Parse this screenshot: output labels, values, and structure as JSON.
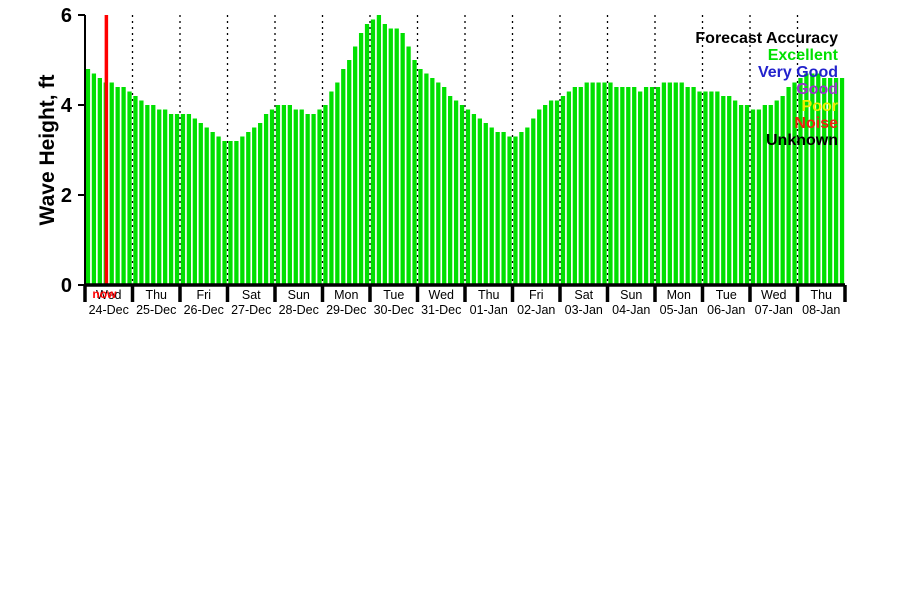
{
  "chart_data": {
    "type": "bar",
    "title": "",
    "ylabel": "Wave Height, ft",
    "ylim": [
      0,
      6
    ],
    "yticks": [
      0,
      2,
      4,
      6
    ],
    "grid": "dotted vertical lines at day boundaries",
    "legend_position": "top-right",
    "bar_color": "#00e000",
    "now_line": {
      "label": "now",
      "color": "#ff0000",
      "day_index": 0,
      "fraction": 0.45
    },
    "days": [
      {
        "day": "Wed",
        "date": "24-Dec"
      },
      {
        "day": "Thu",
        "date": "25-Dec"
      },
      {
        "day": "Fri",
        "date": "26-Dec"
      },
      {
        "day": "Sat",
        "date": "27-Dec"
      },
      {
        "day": "Sun",
        "date": "28-Dec"
      },
      {
        "day": "Mon",
        "date": "29-Dec"
      },
      {
        "day": "Tue",
        "date": "30-Dec"
      },
      {
        "day": "Wed",
        "date": "31-Dec"
      },
      {
        "day": "Thu",
        "date": "01-Jan"
      },
      {
        "day": "Fri",
        "date": "02-Jan"
      },
      {
        "day": "Sat",
        "date": "03-Jan"
      },
      {
        "day": "Sun",
        "date": "04-Jan"
      },
      {
        "day": "Mon",
        "date": "05-Jan"
      },
      {
        "day": "Tue",
        "date": "06-Jan"
      },
      {
        "day": "Wed",
        "date": "07-Jan"
      },
      {
        "day": "Thu",
        "date": "08-Jan"
      }
    ],
    "values_per_day": 8,
    "values": [
      4.8,
      4.7,
      4.6,
      4.5,
      4.5,
      4.4,
      4.4,
      4.3,
      4.2,
      4.1,
      4.0,
      4.0,
      3.9,
      3.9,
      3.8,
      3.8,
      3.8,
      3.8,
      3.7,
      3.6,
      3.5,
      3.4,
      3.3,
      3.2,
      3.2,
      3.2,
      3.3,
      3.4,
      3.5,
      3.6,
      3.8,
      3.9,
      4.0,
      4.0,
      4.0,
      3.9,
      3.9,
      3.8,
      3.8,
      3.9,
      4.0,
      4.3,
      4.5,
      4.8,
      5.0,
      5.3,
      5.6,
      5.8,
      5.9,
      6.0,
      5.8,
      5.7,
      5.7,
      5.6,
      5.3,
      5.0,
      4.8,
      4.7,
      4.6,
      4.5,
      4.4,
      4.2,
      4.1,
      4.0,
      3.9,
      3.8,
      3.7,
      3.6,
      3.5,
      3.4,
      3.4,
      3.3,
      3.3,
      3.4,
      3.5,
      3.7,
      3.9,
      4.0,
      4.1,
      4.1,
      4.2,
      4.3,
      4.4,
      4.4,
      4.5,
      4.5,
      4.5,
      4.5,
      4.5,
      4.4,
      4.4,
      4.4,
      4.4,
      4.3,
      4.4,
      4.4,
      4.4,
      4.5,
      4.5,
      4.5,
      4.5,
      4.4,
      4.4,
      4.3,
      4.3,
      4.3,
      4.3,
      4.2,
      4.2,
      4.1,
      4.0,
      4.0,
      3.9,
      3.9,
      4.0,
      4.0,
      4.1,
      4.2,
      4.4,
      4.5,
      4.6,
      4.7,
      4.7,
      4.7,
      4.6,
      4.6,
      4.6,
      4.6
    ],
    "legend": {
      "title": "Forecast Accuracy",
      "items": [
        {
          "label": "Excellent",
          "color": "#00e000"
        },
        {
          "label": "Very Good",
          "color": "#2222cc"
        },
        {
          "label": "Good",
          "color": "#9933cc"
        },
        {
          "label": "Poor",
          "color": "#f0ee00"
        },
        {
          "label": "Noise",
          "color": "#ee2211"
        },
        {
          "label": "Unknown",
          "color": "#000000"
        }
      ]
    }
  }
}
